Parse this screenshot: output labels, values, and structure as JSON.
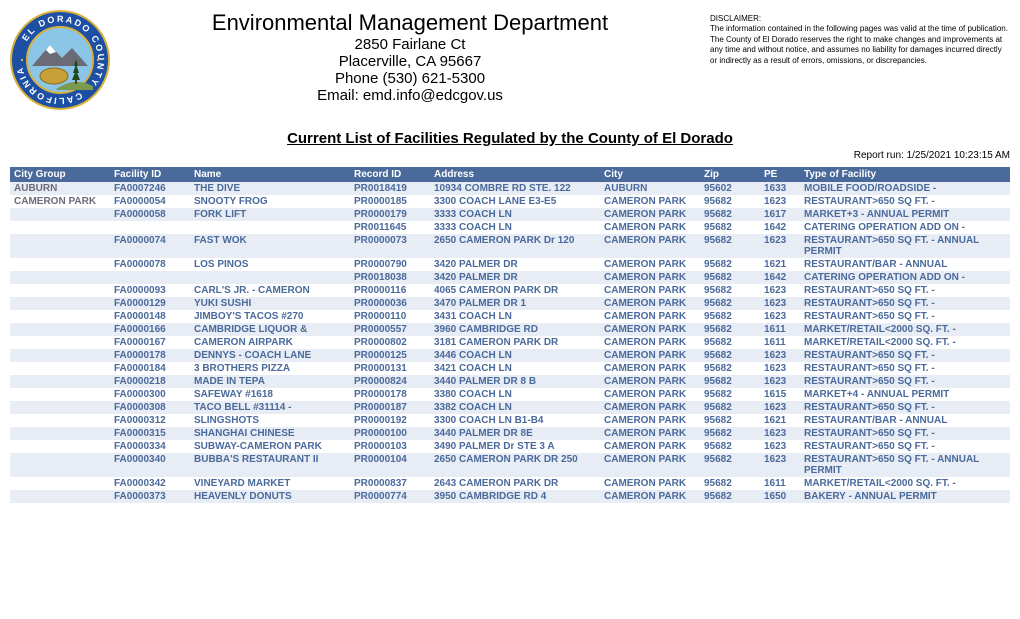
{
  "header": {
    "dept": "Environmental Management Department",
    "addr1": "2850 Fairlane Ct",
    "addr2": "Placerville, CA 95667",
    "phone": "Phone (530) 621-5300",
    "email": "Email: emd.info@edcgov.us",
    "disclaimer_h": "DISCLAIMER:",
    "disclaimer_body": "The information contained in the following pages was valid at the time of publication. The County of El Dorado reserves the right to make changes and improvements at any time and without notice, and assumes no liability for damages incurred directly or indirectly as a result of errors, omissions, or discrepancies."
  },
  "report": {
    "title": "Current List of Facilities Regulated by the County of El Dorado",
    "run": "Report run: 1/25/2021 10:23:15 AM"
  },
  "seal": {
    "outer_text": "EL DORADO COUNTY • CALIFORNIA",
    "ring_color": "#1d4fa4",
    "text_color": "#ffffff",
    "inner_border": "#d9b23c",
    "sky": "#8bc5e8",
    "ground": "#7a9a4f",
    "nugget_color": "#c9a038"
  },
  "columns": [
    {
      "key": "group",
      "label": "City Group",
      "class": "col-group"
    },
    {
      "key": "facility",
      "label": "Facility ID",
      "class": "col-facility"
    },
    {
      "key": "name",
      "label": "Name",
      "class": "col-name"
    },
    {
      "key": "record",
      "label": "Record ID",
      "class": "col-record"
    },
    {
      "key": "address",
      "label": "Address",
      "class": "col-address"
    },
    {
      "key": "city",
      "label": "City",
      "class": "col-city"
    },
    {
      "key": "zip",
      "label": "Zip",
      "class": "col-zip"
    },
    {
      "key": "pe",
      "label": "PE",
      "class": "col-pe"
    },
    {
      "key": "type",
      "label": "Type of Facility",
      "class": "col-type"
    }
  ],
  "rows": [
    {
      "group": "AUBURN",
      "facility": "FA0007246",
      "name": "THE DIVE",
      "record": "PR0018419",
      "address": "10934 COMBRE RD STE. 122",
      "city": "AUBURN",
      "zip": "95602",
      "pe": "1633",
      "type": "MOBILE FOOD/ROADSIDE -",
      "stripe": "odd"
    },
    {
      "group": "CAMERON PARK",
      "facility": "FA0000054",
      "name": "SNOOTY FROG",
      "record": "PR0000185",
      "address": "3300 COACH  LANE   E3-E5",
      "city": "CAMERON PARK",
      "zip": "95682",
      "pe": "1623",
      "type": "RESTAURANT>650 SQ FT. -",
      "stripe": "even"
    },
    {
      "group": "",
      "facility": "FA0000058",
      "name": "FORK LIFT",
      "record": "PR0000179",
      "address": "3333 COACH LN",
      "city": "CAMERON PARK",
      "zip": "95682",
      "pe": "1617",
      "type": "MARKET+3 - ANNUAL PERMIT",
      "stripe": "odd"
    },
    {
      "group": "",
      "facility": "",
      "name": "",
      "record": "PR0011645",
      "address": "3333 COACH LN",
      "city": "CAMERON PARK",
      "zip": "95682",
      "pe": "1642",
      "type": "CATERING OPERATION ADD ON -",
      "stripe": "even"
    },
    {
      "group": "",
      "facility": "FA0000074",
      "name": "FAST WOK",
      "record": "PR0000073",
      "address": "2650 CAMERON PARK Dr 120",
      "city": "CAMERON PARK",
      "zip": "95682",
      "pe": "1623",
      "type": "RESTAURANT>650 SQ FT. - ANNUAL PERMIT",
      "stripe": "odd"
    },
    {
      "group": "",
      "facility": "FA0000078",
      "name": "LOS PINOS",
      "record": "PR0000790",
      "address": "3420 PALMER DR",
      "city": "CAMERON PARK",
      "zip": "95682",
      "pe": "1621",
      "type": "RESTAURANT/BAR - ANNUAL",
      "stripe": "even"
    },
    {
      "group": "",
      "facility": "",
      "name": "",
      "record": "PR0018038",
      "address": "3420 PALMER DR",
      "city": "CAMERON PARK",
      "zip": "95682",
      "pe": "1642",
      "type": "CATERING OPERATION ADD ON -",
      "stripe": "odd"
    },
    {
      "group": "",
      "facility": "FA0000093",
      "name": "CARL'S JR. - CAMERON",
      "record": "PR0000116",
      "address": "4065 CAMERON PARK DR",
      "city": "CAMERON PARK",
      "zip": "95682",
      "pe": "1623",
      "type": "RESTAURANT>650 SQ FT. -",
      "stripe": "even"
    },
    {
      "group": "",
      "facility": "FA0000129",
      "name": "YUKI  SUSHI",
      "record": "PR0000036",
      "address": "3470 PALMER DR 1",
      "city": "CAMERON PARK",
      "zip": "95682",
      "pe": "1623",
      "type": "RESTAURANT>650 SQ FT. -",
      "stripe": "odd"
    },
    {
      "group": "",
      "facility": "FA0000148",
      "name": "JIMBOY'S TACOS #270",
      "record": "PR0000110",
      "address": "3431 COACH LN",
      "city": "CAMERON PARK",
      "zip": "95682",
      "pe": "1623",
      "type": "RESTAURANT>650 SQ FT. -",
      "stripe": "even"
    },
    {
      "group": "",
      "facility": "FA0000166",
      "name": "CAMBRIDGE LIQUOR &",
      "record": "PR0000557",
      "address": "3960 CAMBRIDGE RD",
      "city": "CAMERON PARK",
      "zip": "95682",
      "pe": "1611",
      "type": "MARKET/RETAIL<2000 SQ. FT. -",
      "stripe": "odd"
    },
    {
      "group": "",
      "facility": "FA0000167",
      "name": "CAMERON AIRPARK",
      "record": "PR0000802",
      "address": "3181 CAMERON PARK DR",
      "city": "CAMERON PARK",
      "zip": "95682",
      "pe": "1611",
      "type": "MARKET/RETAIL<2000 SQ. FT. -",
      "stripe": "even"
    },
    {
      "group": "",
      "facility": "FA0000178",
      "name": "DENNYS - COACH LANE",
      "record": "PR0000125",
      "address": "3446 COACH LN",
      "city": "CAMERON PARK",
      "zip": "95682",
      "pe": "1623",
      "type": "RESTAURANT>650 SQ FT. -",
      "stripe": "odd"
    },
    {
      "group": "",
      "facility": "FA0000184",
      "name": "3 BROTHERS PIZZA",
      "record": "PR0000131",
      "address": "3421 COACH LN",
      "city": "CAMERON PARK",
      "zip": "95682",
      "pe": "1623",
      "type": "RESTAURANT>650 SQ FT. -",
      "stripe": "even"
    },
    {
      "group": "",
      "facility": "FA0000218",
      "name": "MADE IN TEPA",
      "record": "PR0000824",
      "address": "3440 PALMER DR 8 B",
      "city": "CAMERON PARK",
      "zip": "95682",
      "pe": "1623",
      "type": "RESTAURANT>650 SQ FT. -",
      "stripe": "odd"
    },
    {
      "group": "",
      "facility": "FA0000300",
      "name": "SAFEWAY #1618",
      "record": "PR0000178",
      "address": "3380 COACH LN",
      "city": "CAMERON PARK",
      "zip": "95682",
      "pe": "1615",
      "type": "MARKET+4  - ANNUAL PERMIT",
      "stripe": "even"
    },
    {
      "group": "",
      "facility": "FA0000308",
      "name": "TACO BELL #31114 -",
      "record": "PR0000187",
      "address": "3382 COACH LN",
      "city": "CAMERON PARK",
      "zip": "95682",
      "pe": "1623",
      "type": "RESTAURANT>650 SQ FT. -",
      "stripe": "odd"
    },
    {
      "group": "",
      "facility": "FA0000312",
      "name": "SLINGSHOTS",
      "record": "PR0000192",
      "address": "3300 COACH LN B1-B4",
      "city": "CAMERON PARK",
      "zip": "95682",
      "pe": "1621",
      "type": "RESTAURANT/BAR - ANNUAL",
      "stripe": "even"
    },
    {
      "group": "",
      "facility": "FA0000315",
      "name": "SHANGHAI CHINESE",
      "record": "PR0000100",
      "address": "3440 PALMER DR 8E",
      "city": "CAMERON PARK",
      "zip": "95682",
      "pe": "1623",
      "type": "RESTAURANT>650 SQ FT. -",
      "stripe": "odd"
    },
    {
      "group": "",
      "facility": "FA0000334",
      "name": "SUBWAY-CAMERON PARK",
      "record": "PR0000103",
      "address": "3490 PALMER Dr STE 3 A",
      "city": "CAMERON PARK",
      "zip": "95682",
      "pe": "1623",
      "type": "RESTAURANT>650 SQ FT. -",
      "stripe": "even"
    },
    {
      "group": "",
      "facility": "FA0000340",
      "name": "BUBBA'S RESTAURANT II",
      "record": "PR0000104",
      "address": "2650 CAMERON PARK DR 250",
      "city": "CAMERON PARK",
      "zip": "95682",
      "pe": "1623",
      "type": "RESTAURANT>650 SQ FT. - ANNUAL PERMIT",
      "stripe": "odd"
    },
    {
      "group": "",
      "facility": "FA0000342",
      "name": "VINEYARD MARKET",
      "record": "PR0000837",
      "address": "2643 CAMERON PARK DR",
      "city": "CAMERON PARK",
      "zip": "95682",
      "pe": "1611",
      "type": "MARKET/RETAIL<2000 SQ. FT. -",
      "stripe": "even"
    },
    {
      "group": "",
      "facility": "FA0000373",
      "name": "HEAVENLY DONUTS",
      "record": "PR0000774",
      "address": "3950 CAMBRIDGE RD 4",
      "city": "CAMERON PARK",
      "zip": "95682",
      "pe": "1650",
      "type": "BAKERY - ANNUAL PERMIT",
      "stripe": "odd"
    }
  ]
}
